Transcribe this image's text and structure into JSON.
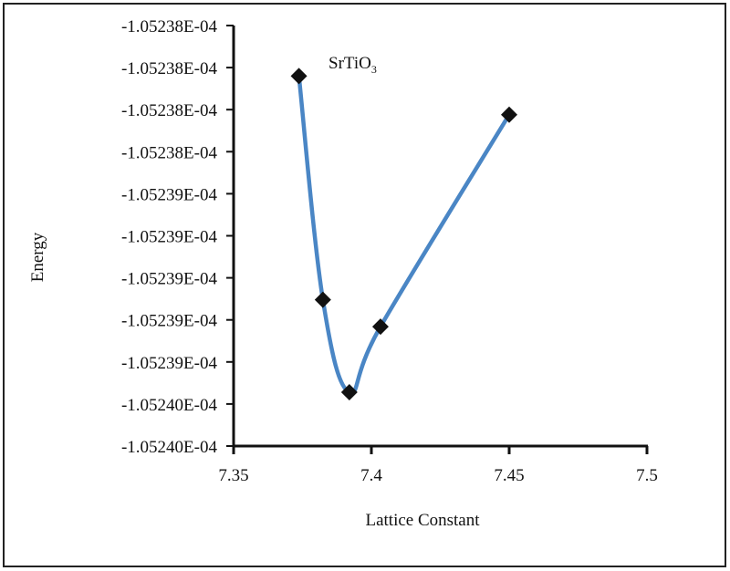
{
  "chart_data": {
    "type": "line",
    "title": "SrTiO3",
    "title_main": "SrTiO",
    "title_sub": "3",
    "xlabel": "Lattice Constant",
    "ylabel": "Energy",
    "xlim": [
      7.35,
      7.5
    ],
    "ylim": [
      -0.00010524,
      -0.0001052375
    ],
    "x_ticks": [
      7.35,
      7.4,
      7.45,
      7.5
    ],
    "x_tick_labels": [
      "7.35",
      "7.4",
      "7.45",
      "7.5"
    ],
    "y_ticks": [
      -0.0001052375,
      -0.00010523775,
      -0.000105238,
      -0.00010523825,
      -0.0001052385,
      -0.00010523875,
      -0.000105239,
      -0.00010523925,
      -0.0001052395,
      -0.00010523975,
      -0.00010524
    ],
    "y_tick_labels": [
      "-1.05238E-04",
      "-1.05238E-04",
      "-1.05238E-04",
      "-1.05238E-04",
      "-1.05239E-04",
      "-1.05239E-04",
      "-1.05239E-04",
      "-1.05239E-04",
      "-1.05239E-04",
      "-1.05240E-04",
      "-1.05240E-04"
    ],
    "grid": false,
    "series": [
      {
        "name": "SrTiO3",
        "color": "#4a86c5",
        "marker": "diamond",
        "marker_color": "#111111",
        "smooth": true,
        "x": [
          7.3737,
          7.3824,
          7.392,
          7.4033,
          7.45
        ],
        "y": [
          -0.0001052378,
          -0.00010523913,
          -0.00010523968,
          -0.00010523929,
          -0.00010523803
        ]
      }
    ]
  }
}
